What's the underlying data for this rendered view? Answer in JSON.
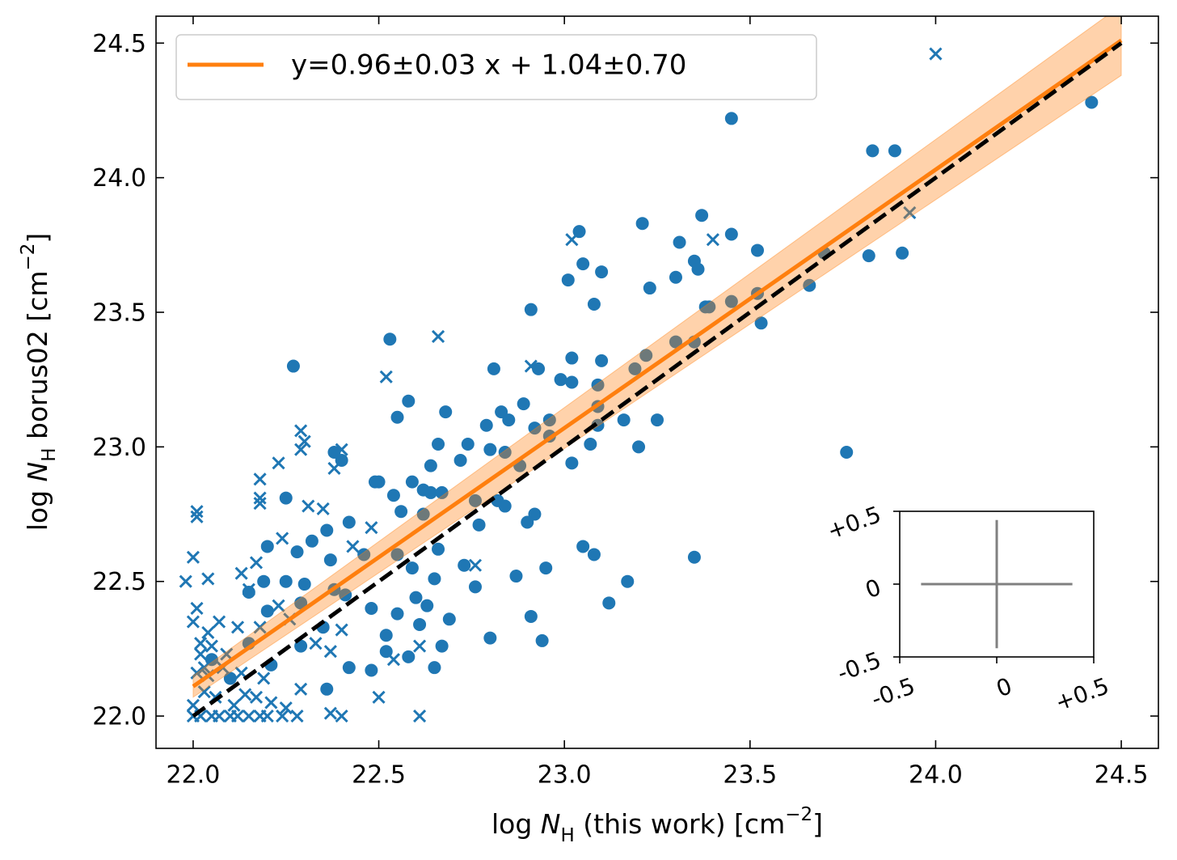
{
  "chart_data": [
    {
      "type": "scatter",
      "xlim": [
        21.9,
        24.6
      ],
      "ylim": [
        21.88,
        24.6
      ],
      "xticks": [
        {
          "value": 22,
          "label": "22.0"
        },
        {
          "value": 22.5,
          "label": "22.5"
        },
        {
          "value": 23,
          "label": "23.0"
        },
        {
          "value": 23.5,
          "label": "23.5"
        },
        {
          "value": 24,
          "label": "24.0"
        },
        {
          "value": 24.5,
          "label": "24.5"
        }
      ],
      "yticks": [
        {
          "value": 22,
          "label": "22.0"
        },
        {
          "value": 22.5,
          "label": "22.5"
        },
        {
          "value": 23,
          "label": "23.0"
        },
        {
          "value": 23.5,
          "label": "23.5"
        },
        {
          "value": 24,
          "label": "24.0"
        },
        {
          "value": 24.5,
          "label": "24.5"
        }
      ],
      "xlabel": [
        "log ",
        "N",
        "H",
        " (this work) [cm",
        "−2",
        "]"
      ],
      "ylabel": [
        "log ",
        "N",
        "H",
        " borus02 [cm",
        "−2",
        "]"
      ],
      "legend": "upper left",
      "series": [
        {
          "type": "scatter",
          "marker": "o",
          "color": "#1f77b4",
          "x": [
            24.42,
            23.45,
            23.83,
            23.89,
            23.37,
            23.21,
            23.04,
            23.45,
            23.31,
            23.82,
            23.91,
            23.52,
            23.7,
            23.35,
            23.05,
            23.36,
            23.1,
            23.01,
            23.3,
            23.66,
            23.23,
            23.08,
            23.45,
            23.52,
            23.38,
            23.39,
            22.91,
            23.53,
            22.53,
            22.27,
            22.81,
            22.93,
            23.02,
            23.1,
            23.22,
            23.3,
            23.35,
            22.99,
            23.02,
            23.09,
            23.19,
            22.58,
            22.89,
            22.83,
            22.68,
            22.55,
            22.85,
            22.96,
            22.92,
            22.79,
            23.09,
            23.16,
            23.25,
            23.09,
            22.96,
            22.66,
            22.74,
            23.2,
            23.07,
            22.8,
            22.84,
            22.72,
            23.02,
            22.4,
            22.38,
            22.64,
            22.88,
            22.5,
            22.49,
            22.59,
            22.54,
            22.62,
            22.25,
            22.76,
            22.82,
            22.64,
            22.67,
            22.56,
            22.62,
            22.92,
            22.84,
            22.42,
            22.36,
            22.32,
            22.77,
            22.9,
            23.05,
            22.2,
            22.66,
            22.55,
            22.28,
            23.08,
            23.35,
            22.46,
            22.37,
            22.73,
            22.95,
            22.59,
            22.65,
            22.87,
            23.17,
            22.25,
            22.19,
            22.3,
            22.76,
            22.38,
            22.41,
            22.15,
            22.6,
            23.12,
            22.48,
            22.63,
            22.55,
            22.29,
            22.2,
            22.69,
            22.91,
            22.61,
            22.35,
            22.52,
            22.15,
            22.29,
            22.8,
            22.94,
            22.67,
            22.52,
            22.21,
            22.42,
            22.48,
            22.65,
            22.58,
            23.76,
            22.36,
            22.05,
            22.1
          ],
          "y": [
            24.28,
            24.22,
            24.1,
            24.1,
            23.86,
            23.83,
            23.8,
            23.79,
            23.76,
            23.71,
            23.72,
            23.73,
            23.72,
            23.69,
            23.68,
            23.66,
            23.65,
            23.62,
            23.63,
            23.6,
            23.59,
            23.53,
            23.54,
            23.57,
            23.52,
            23.52,
            23.51,
            23.46,
            23.4,
            23.3,
            23.29,
            23.29,
            23.33,
            23.32,
            23.34,
            23.39,
            23.39,
            23.25,
            23.24,
            23.23,
            23.29,
            23.17,
            23.16,
            23.13,
            23.13,
            23.11,
            23.1,
            23.1,
            23.07,
            23.08,
            23.15,
            23.1,
            23.1,
            23.08,
            23.04,
            23.01,
            23.01,
            23.0,
            23.01,
            22.99,
            22.98,
            22.95,
            22.94,
            22.95,
            22.98,
            22.93,
            22.93,
            22.87,
            22.87,
            22.87,
            22.82,
            22.84,
            22.81,
            22.8,
            22.8,
            22.83,
            22.83,
            22.76,
            22.75,
            22.75,
            22.78,
            22.72,
            22.69,
            22.65,
            22.71,
            22.72,
            22.63,
            22.63,
            22.62,
            22.6,
            22.61,
            22.6,
            22.59,
            22.6,
            22.58,
            22.56,
            22.55,
            22.55,
            22.51,
            22.52,
            22.5,
            22.5,
            22.5,
            22.49,
            22.48,
            22.47,
            22.45,
            22.46,
            22.44,
            22.42,
            22.4,
            22.41,
            22.38,
            22.42,
            22.39,
            22.36,
            22.37,
            22.34,
            22.33,
            22.3,
            22.27,
            22.26,
            22.29,
            22.28,
            22.26,
            22.24,
            22.19,
            22.18,
            22.17,
            22.18,
            22.22,
            22.98,
            22.1,
            22.21,
            22.14
          ]
        },
        {
          "type": "scatter",
          "marker": "x",
          "color": "#1f77b4",
          "x": [
            24.0,
            23.93,
            23.4,
            23.02,
            22.66,
            22.52,
            22.91,
            22.29,
            22.3,
            22.29,
            22.4,
            22.38,
            22.23,
            22.18,
            22.18,
            22.18,
            22.31,
            22.35,
            22.01,
            22.01,
            22.0,
            22.04,
            21.98,
            22.13,
            22.17,
            22.24,
            22.48,
            22.43,
            22.76,
            22.15,
            22.01,
            22.0,
            22.07,
            22.04,
            22.12,
            22.18,
            22.23,
            22.26,
            22.02,
            22.05,
            22.09,
            22.02,
            22.33,
            22.37,
            22.4,
            22.03,
            22.08,
            22.01,
            22.04,
            22.13,
            22.19,
            22.54,
            22.61,
            22.29,
            22.03,
            22.06,
            22.14,
            22.17,
            22.5,
            22.0,
            22.11,
            22.21,
            22.25,
            22.0,
            22.02,
            22.05,
            22.07,
            22.1,
            22.12,
            22.15,
            22.18,
            22.2,
            22.24,
            22.28,
            22.37,
            22.4,
            22.61
          ],
          "y": [
            24.46,
            23.87,
            23.77,
            23.77,
            23.41,
            23.26,
            23.3,
            23.06,
            23.02,
            22.99,
            22.99,
            22.92,
            22.94,
            22.88,
            22.81,
            22.79,
            22.78,
            22.77,
            22.76,
            22.74,
            22.59,
            22.51,
            22.5,
            22.53,
            22.57,
            22.66,
            22.7,
            22.63,
            22.56,
            22.47,
            22.4,
            22.35,
            22.35,
            22.31,
            22.33,
            22.33,
            22.41,
            22.36,
            22.27,
            22.26,
            22.23,
            22.23,
            22.27,
            22.24,
            22.32,
            22.18,
            22.18,
            22.16,
            22.15,
            22.16,
            22.14,
            22.21,
            22.26,
            22.1,
            22.09,
            22.07,
            22.08,
            22.07,
            22.07,
            22.04,
            22.04,
            22.05,
            22.03,
            22.0,
            22.0,
            22.0,
            22.0,
            22.0,
            22.0,
            22.0,
            22.0,
            22.0,
            22.0,
            22.0,
            22.01,
            22.0,
            22.0
          ]
        },
        {
          "type": "line",
          "name": "y=0.96±0.03 x + 1.04±0.70",
          "color": "#ff7f0e",
          "x": [
            22,
            24.5
          ],
          "y": [
            22.11,
            24.51
          ],
          "band_low": [
            22.07,
            24.38
          ],
          "band_high": [
            22.15,
            24.64
          ]
        },
        {
          "type": "line",
          "color": "#000000",
          "dash": true,
          "x": [
            22,
            24.5
          ],
          "y": [
            22,
            24.5
          ]
        }
      ]
    },
    {
      "type": "errorbar",
      "color": "#808080",
      "x": [
        0
      ],
      "y": [
        0
      ],
      "xerr": [
        0.39
      ],
      "yerr": [
        0.44
      ],
      "xlim": [
        -0.5,
        0.5
      ],
      "ylim": [
        -0.5,
        0.5
      ],
      "xticks": [
        -0.5,
        0,
        {
          "value": 0.5,
          "label": "+0.5"
        }
      ],
      "yticks": [
        -0.5,
        0,
        {
          "value": 0.5,
          "label": "+0.5"
        }
      ]
    }
  ]
}
